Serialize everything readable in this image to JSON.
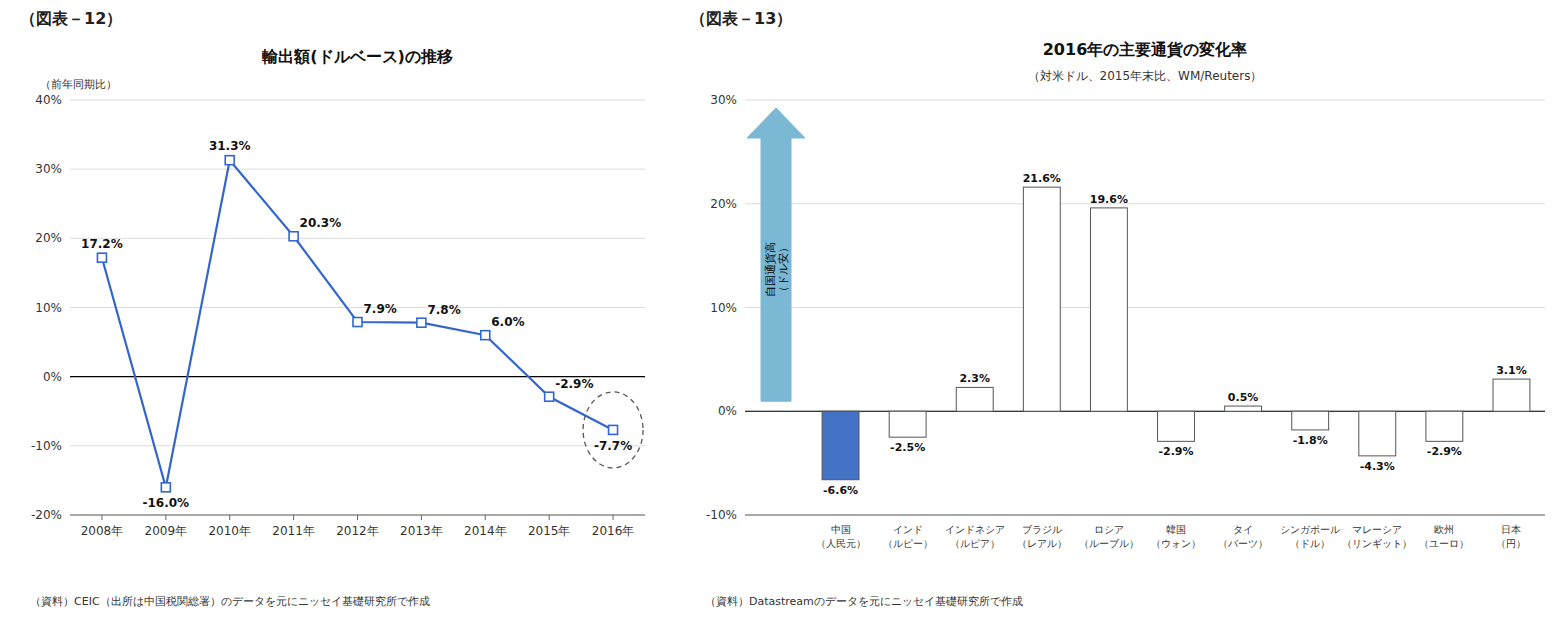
{
  "chart_data": [
    {
      "type": "line",
      "panel_label": "（図表－12）",
      "title": "輸出額(ドルベース)の推移",
      "y_label": "（前年同期比）",
      "categories": [
        "2008年",
        "2009年",
        "2010年",
        "2011年",
        "2012年",
        "2013年",
        "2014年",
        "2015年",
        "2016年"
      ],
      "values": [
        17.2,
        -16.0,
        31.3,
        20.3,
        7.9,
        7.8,
        6.0,
        -2.9,
        -7.7
      ],
      "value_labels": [
        "17.2%",
        "-16.0%",
        "31.3%",
        "20.3%",
        "7.9%",
        "7.8%",
        "6.0%",
        "-2.9%",
        "-7.7%"
      ],
      "data_labels": true,
      "color": "#3366cc",
      "marker": "square",
      "ylim": [
        -20,
        40
      ],
      "yticks": [
        {
          "value": -20,
          "label": "-20%"
        },
        {
          "value": -10,
          "label": "-10%"
        },
        {
          "value": 0,
          "label": "0%"
        },
        {
          "value": 10,
          "label": "10%"
        },
        {
          "value": 20,
          "label": "20%"
        },
        {
          "value": 30,
          "label": "30%"
        },
        {
          "value": 40,
          "label": "40%"
        }
      ],
      "grid": true,
      "source": "（資料）CEIC（出所は中国税関総署）のデータを元にニッセイ基礎研究所で作成"
    },
    {
      "type": "bar",
      "panel_label": "（図表－13）",
      "title": "2016年の主要通貨の変化率",
      "subtitle": "（対米ドル、2015年末比、WM/Reuters）",
      "categories": [
        "中国\n（人民元）",
        "インド\n（ルピー）",
        "インドネシア\n（ルピア）",
        "ブラジル\n（レアル）",
        "ロシア\n（ルーブル）",
        "韓国\n（ウォン）",
        "タイ\n（バーツ）",
        "シンガポール\n（ドル）",
        "マレーシア\n（リンギット）",
        "欧州\n（ユーロ）",
        "日本\n（円）"
      ],
      "values": [
        -6.6,
        -2.5,
        2.3,
        21.6,
        19.6,
        -2.9,
        0.5,
        -1.8,
        -4.3,
        -2.9,
        3.1
      ],
      "value_labels": [
        "-6.6%",
        "-2.5%",
        "2.3%",
        "21.6%",
        "19.6%",
        "-2.9%",
        "0.5%",
        "-1.8%",
        "-4.3%",
        "-2.9%",
        "3.1%"
      ],
      "data_labels": true,
      "colors": [
        "#4472c4",
        "white",
        "white",
        "white",
        "white",
        "white",
        "white",
        "white",
        "white",
        "white",
        "white"
      ],
      "ylim": [
        -10,
        30
      ],
      "yticks": [
        {
          "value": -10,
          "label": "-10%"
        },
        {
          "value": 0,
          "label": "0%"
        },
        {
          "value": 10,
          "label": "10%"
        },
        {
          "value": 20,
          "label": "20%"
        },
        {
          "value": 30,
          "label": "30%"
        }
      ],
      "grid": true,
      "arrow_text": [
        "自国通貨高",
        "（ドル安）"
      ],
      "source": "（資料）Datastreamのデータを元にニッセイ基礎研究所で作成"
    }
  ]
}
